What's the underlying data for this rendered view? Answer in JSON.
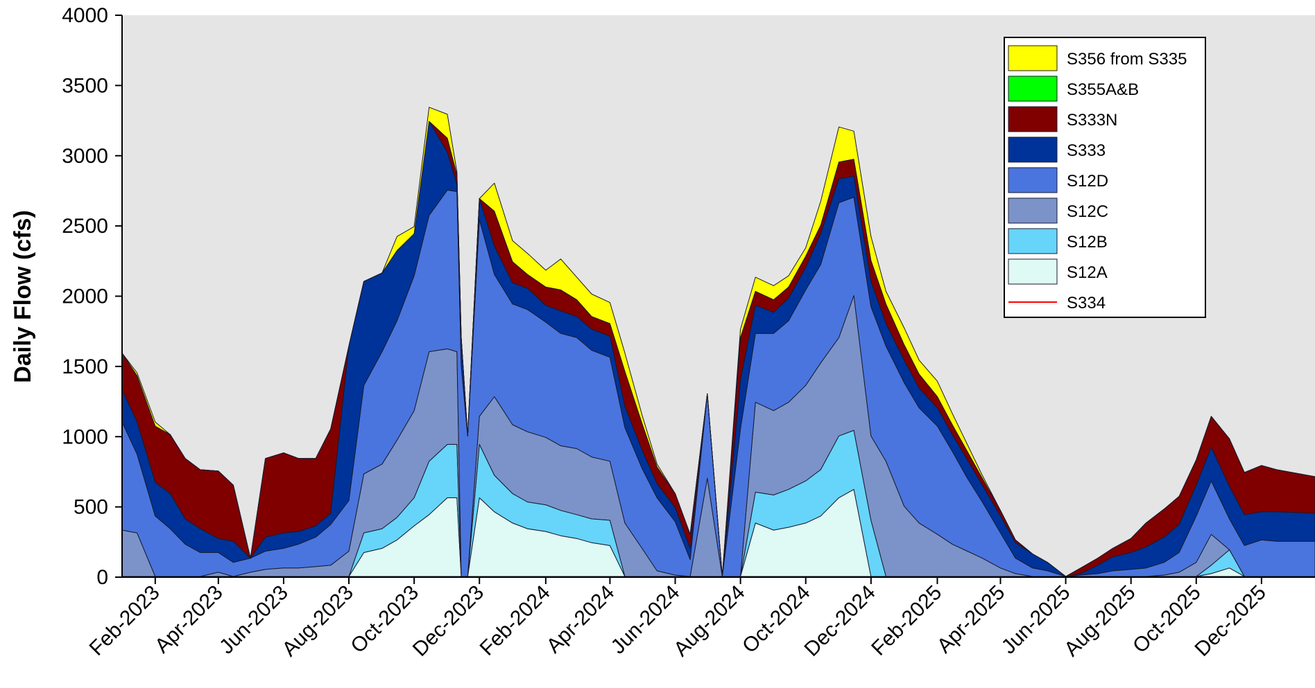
{
  "chart_data": {
    "type": "area",
    "stacked": true,
    "title": "",
    "xlabel": "",
    "ylabel": "Daily Flow (cfs)",
    "ylim": [
      0,
      4000
    ],
    "yticks": [
      "0",
      "500",
      "1000",
      "1500",
      "2000",
      "2500",
      "3000",
      "3500",
      "4000"
    ],
    "xticks": [
      "Feb-2023",
      "Apr-2023",
      "Jun-2023",
      "Aug-2023",
      "Oct-2023",
      "Dec-2023",
      "Feb-2024",
      "Apr-2024",
      "Jun-2024",
      "Aug-2024",
      "Oct-2024",
      "Dec-2024",
      "Feb-2025",
      "Apr-2025",
      "Jun-2025",
      "Aug-2025",
      "Oct-2025",
      "Dec-2025"
    ],
    "xrange": [
      "2023-01-01",
      "2026-01-20"
    ],
    "grid": false,
    "background": "#e5e5e5",
    "legend_position": "top-right",
    "x": [
      "2023-01-01",
      "2023-01-15",
      "2023-02-01",
      "2023-02-15",
      "2023-03-01",
      "2023-03-15",
      "2023-04-01",
      "2023-04-15",
      "2023-05-01",
      "2023-05-15",
      "2023-06-01",
      "2023-06-15",
      "2023-07-01",
      "2023-07-15",
      "2023-08-01",
      "2023-08-15",
      "2023-09-01",
      "2023-09-15",
      "2023-10-01",
      "2023-10-15",
      "2023-11-01",
      "2023-11-10",
      "2023-11-14",
      "2023-11-20",
      "2023-12-01",
      "2023-12-15",
      "2024-01-01",
      "2024-01-15",
      "2024-02-01",
      "2024-02-15",
      "2024-03-01",
      "2024-03-15",
      "2024-04-01",
      "2024-04-15",
      "2024-05-01",
      "2024-05-15",
      "2024-06-01",
      "2024-06-15",
      "2024-07-01",
      "2024-07-15",
      "2024-08-01",
      "2024-08-15",
      "2024-09-01",
      "2024-09-15",
      "2024-10-01",
      "2024-10-15",
      "2024-11-01",
      "2024-11-15",
      "2024-12-01",
      "2024-12-15",
      "2025-01-01",
      "2025-01-15",
      "2025-02-01",
      "2025-02-15",
      "2025-03-01",
      "2025-03-15",
      "2025-04-01",
      "2025-04-15",
      "2025-05-01",
      "2025-05-15",
      "2025-06-01",
      "2025-06-15",
      "2025-07-01",
      "2025-07-15",
      "2025-08-01",
      "2025-08-15",
      "2025-09-01",
      "2025-09-15",
      "2025-10-01",
      "2025-10-15",
      "2025-11-01",
      "2025-11-15",
      "2025-12-01",
      "2025-12-15",
      "2026-01-20"
    ],
    "series": [
      {
        "name": "S334",
        "color": "#ff0000",
        "values": [
          5,
          5,
          5,
          5,
          5,
          5,
          5,
          5,
          5,
          5,
          5,
          5,
          5,
          5,
          5,
          5,
          5,
          5,
          5,
          5,
          5,
          5,
          5,
          5,
          5,
          5,
          5,
          5,
          5,
          5,
          5,
          5,
          5,
          5,
          5,
          5,
          5,
          5,
          5,
          5,
          5,
          5,
          5,
          5,
          5,
          5,
          5,
          5,
          5,
          5,
          5,
          5,
          5,
          5,
          5,
          5,
          5,
          5,
          5,
          5,
          5,
          5,
          5,
          5,
          5,
          5,
          5,
          5,
          5,
          5,
          5,
          5,
          5,
          5,
          5
        ]
      },
      {
        "name": "S12A",
        "color": "#dff9f5",
        "values": [
          0,
          0,
          0,
          0,
          0,
          0,
          0,
          0,
          0,
          0,
          0,
          0,
          0,
          0,
          0,
          170,
          200,
          260,
          360,
          440,
          560,
          560,
          0,
          0,
          560,
          460,
          380,
          340,
          320,
          290,
          270,
          240,
          220,
          0,
          0,
          0,
          0,
          0,
          0,
          0,
          0,
          380,
          330,
          350,
          380,
          430,
          560,
          620,
          0,
          0,
          0,
          0,
          0,
          0,
          0,
          0,
          0,
          0,
          0,
          0,
          0,
          0,
          0,
          0,
          0,
          0,
          0,
          0,
          0,
          20,
          60,
          0,
          0,
          0,
          0
        ]
      },
      {
        "name": "S12B",
        "color": "#66d5f9",
        "values": [
          0,
          0,
          0,
          0,
          0,
          0,
          0,
          0,
          0,
          0,
          0,
          0,
          0,
          0,
          0,
          140,
          140,
          160,
          200,
          380,
          380,
          380,
          0,
          0,
          380,
          260,
          210,
          190,
          190,
          180,
          170,
          170,
          180,
          0,
          0,
          0,
          0,
          0,
          0,
          0,
          0,
          220,
          250,
          270,
          300,
          330,
          440,
          420,
          400,
          0,
          0,
          0,
          0,
          0,
          0,
          0,
          0,
          0,
          0,
          0,
          0,
          0,
          0,
          0,
          0,
          0,
          0,
          0,
          0,
          60,
          130,
          0,
          0,
          0,
          0
        ]
      },
      {
        "name": "S12C",
        "color": "#7b93c9",
        "values": [
          330,
          310,
          0,
          0,
          0,
          0,
          30,
          0,
          30,
          50,
          60,
          60,
          70,
          80,
          180,
          420,
          460,
          550,
          620,
          780,
          680,
          660,
          0,
          0,
          200,
          560,
          490,
          500,
          480,
          460,
          470,
          440,
          420,
          380,
          200,
          40,
          10,
          0,
          700,
          0,
          0,
          640,
          600,
          620,
          680,
          760,
          700,
          960,
          600,
          820,
          500,
          380,
          300,
          230,
          180,
          130,
          60,
          20,
          0,
          0,
          0,
          0,
          0,
          0,
          0,
          0,
          10,
          30,
          100,
          220,
          0,
          0,
          0,
          0,
          0
        ]
      },
      {
        "name": "S12D",
        "color": "#4a75de",
        "values": [
          770,
          560,
          430,
          340,
          230,
          170,
          140,
          100,
          100,
          130,
          140,
          170,
          210,
          290,
          360,
          630,
          800,
          850,
          960,
          970,
          1130,
          1140,
          1500,
          1000,
          1400,
          870,
          860,
          870,
          820,
          800,
          790,
          760,
          740,
          680,
          570,
          520,
          380,
          120,
          600,
          0,
          1050,
          490,
          550,
          580,
          680,
          700,
          960,
          700,
          920,
          820,
          880,
          820,
          770,
          660,
          520,
          400,
          250,
          110,
          60,
          40,
          0,
          10,
          20,
          40,
          50,
          60,
          90,
          140,
          330,
          380,
          220,
          220,
          260,
          250,
          250
        ]
      },
      {
        "name": "S333",
        "color": "#003399",
        "values": [
          230,
          230,
          240,
          250,
          180,
          170,
          100,
          150,
          0,
          100,
          110,
          90,
          80,
          80,
          1100,
          740,
          560,
          500,
          300,
          670,
          270,
          50,
          200,
          0,
          150,
          200,
          150,
          150,
          120,
          160,
          150,
          150,
          150,
          150,
          130,
          100,
          100,
          80,
          0,
          0,
          350,
          200,
          150,
          160,
          160,
          220,
          170,
          150,
          180,
          160,
          160,
          140,
          130,
          120,
          130,
          120,
          120,
          110,
          100,
          60,
          0,
          10,
          60,
          100,
          120,
          150,
          180,
          200,
          220,
          240,
          230,
          220,
          200,
          210,
          200
        ]
      },
      {
        "name": "S333N",
        "color": "#800000",
        "values": [
          260,
          330,
          400,
          420,
          430,
          420,
          480,
          400,
          0,
          560,
          570,
          520,
          480,
          600,
          0,
          0,
          0,
          0,
          0,
          0,
          100,
          70,
          0,
          0,
          0,
          250,
          150,
          100,
          130,
          150,
          120,
          90,
          90,
          250,
          190,
          120,
          100,
          100,
          0,
          0,
          300,
          100,
          90,
          80,
          80,
          60,
          120,
          120,
          150,
          140,
          110,
          100,
          80,
          70,
          60,
          50,
          40,
          20,
          0,
          0,
          0,
          40,
          50,
          60,
          100,
          170,
          200,
          200,
          180,
          220,
          340,
          300,
          330,
          300,
          260
        ]
      },
      {
        "name": "S355A&B",
        "color": "#00ff00",
        "values": [
          0,
          0,
          0,
          0,
          0,
          0,
          0,
          0,
          0,
          0,
          0,
          0,
          0,
          0,
          0,
          0,
          0,
          0,
          0,
          0,
          0,
          0,
          0,
          0,
          0,
          0,
          0,
          0,
          0,
          0,
          0,
          0,
          0,
          0,
          0,
          0,
          0,
          0,
          0,
          0,
          0,
          0,
          0,
          0,
          0,
          0,
          0,
          0,
          0,
          0,
          0,
          0,
          0,
          0,
          0,
          0,
          0,
          0,
          0,
          0,
          0,
          0,
          0,
          0,
          0,
          0,
          0,
          0,
          0,
          0,
          0,
          0,
          0,
          0,
          0
        ]
      },
      {
        "name": "S356 from S335",
        "color": "#ffff00",
        "values": [
          0,
          20,
          30,
          0,
          0,
          0,
          0,
          0,
          0,
          0,
          0,
          0,
          0,
          0,
          0,
          0,
          0,
          100,
          50,
          100,
          170,
          20,
          0,
          0,
          0,
          200,
          150,
          150,
          120,
          220,
          160,
          160,
          150,
          130,
          60,
          20,
          0,
          0,
          0,
          0,
          60,
          100,
          100,
          80,
          60,
          170,
          250,
          200,
          170,
          90,
          120,
          100,
          110,
          80,
          50,
          20,
          0,
          0,
          0,
          0,
          0,
          0,
          0,
          0,
          0,
          0,
          0,
          0,
          0,
          0,
          0,
          0,
          0,
          0,
          0
        ]
      }
    ],
    "legend": [
      "S356 from S335",
      "S355A&B",
      "S333N",
      "S333",
      "S12D",
      "S12C",
      "S12B",
      "S12A",
      "S334"
    ]
  }
}
